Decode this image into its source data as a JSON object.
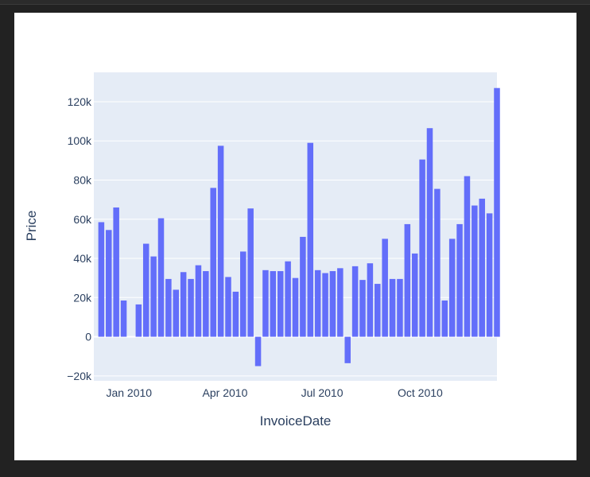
{
  "colors": {
    "background": "#222222",
    "paper": "#ffffff",
    "plot_bg": "#e5ecf6",
    "bar": "#636efa",
    "grid": "#ffffff",
    "text": "#2a3f5f"
  },
  "chart_data": {
    "type": "bar",
    "title": "",
    "xlabel": "InvoiceDate",
    "ylabel": "Price",
    "x_tick_labels": [
      "Jan 2010",
      "Apr 2010",
      "Jul 2010",
      "Oct 2010"
    ],
    "y_ticks": [
      -20000,
      0,
      20000,
      40000,
      60000,
      80000,
      100000,
      120000
    ],
    "y_tick_labels": [
      "−20k",
      "0",
      "20k",
      "40k",
      "60k",
      "80k",
      "100k",
      "120k"
    ],
    "ylim": [
      -22500,
      135000
    ],
    "xlim": [
      "2009-11-29",
      "2010-12-12"
    ],
    "grid": true,
    "legend": false,
    "x": [
      "2009-12-06",
      "2009-12-13",
      "2009-12-20",
      "2009-12-27",
      "2010-01-03",
      "2010-01-10",
      "2010-01-17",
      "2010-01-24",
      "2010-01-31",
      "2010-02-07",
      "2010-02-14",
      "2010-02-21",
      "2010-02-28",
      "2010-03-07",
      "2010-03-14",
      "2010-03-21",
      "2010-03-28",
      "2010-04-04",
      "2010-04-11",
      "2010-04-18",
      "2010-04-25",
      "2010-05-02",
      "2010-05-09",
      "2010-05-16",
      "2010-05-23",
      "2010-05-30",
      "2010-06-06",
      "2010-06-13",
      "2010-06-20",
      "2010-06-27",
      "2010-07-04",
      "2010-07-11",
      "2010-07-18",
      "2010-07-25",
      "2010-08-01",
      "2010-08-08",
      "2010-08-15",
      "2010-08-22",
      "2010-08-29",
      "2010-09-05",
      "2010-09-12",
      "2010-09-19",
      "2010-09-26",
      "2010-10-03",
      "2010-10-10",
      "2010-10-17",
      "2010-10-24",
      "2010-10-31",
      "2010-11-07",
      "2010-11-14",
      "2010-11-21",
      "2010-11-28",
      "2010-12-05",
      "2010-12-12"
    ],
    "values": [
      58500,
      54500,
      66000,
      18500,
      0,
      16500,
      47500,
      41000,
      60500,
      29500,
      24000,
      33000,
      29500,
      36500,
      33500,
      76000,
      97500,
      30500,
      23000,
      43500,
      65500,
      -15000,
      34000,
      33500,
      33500,
      38500,
      30000,
      51000,
      99000,
      34000,
      32500,
      33500,
      35000,
      -13500,
      36000,
      29000,
      37500,
      27000,
      50000,
      29500,
      29500,
      57500,
      42500,
      90500,
      106500,
      75500,
      18500,
      50000,
      57500,
      82000,
      67000,
      70500,
      63000,
      127000
    ]
  }
}
